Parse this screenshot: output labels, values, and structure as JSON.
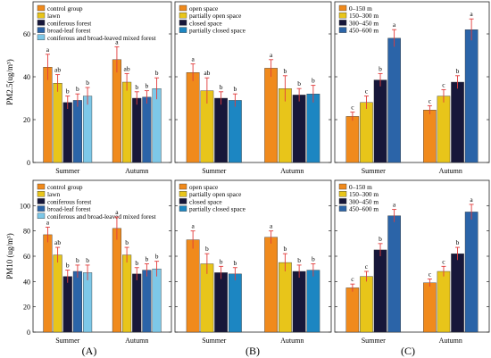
{
  "colors": {
    "group1": [
      "#f08a1c",
      "#e8c51a",
      "#17173a",
      "#2b64a8",
      "#7dc8e8"
    ],
    "group2": [
      "#f08a1c",
      "#e8c51a",
      "#17173a",
      "#1c86c2"
    ],
    "group3": [
      "#f08a1c",
      "#e8c51a",
      "#17173a",
      "#2b64a8"
    ],
    "error": "#e23b3b"
  },
  "panel_labels": [
    "(A)",
    "(B)",
    "(C)"
  ],
  "chart_data": [
    {
      "type": "bar",
      "row": "pm25",
      "col": "A",
      "ylabel": "PM2.5(ug/m³)",
      "ylim": [
        0,
        75
      ],
      "yticks": [
        0,
        20,
        40,
        60
      ],
      "categories": [
        "Summer",
        "Autumn"
      ],
      "legend": [
        "control group",
        "lawn",
        "coniferous forest",
        "broad-leaf forest",
        "coniferous and broad-leaved mixed forest"
      ],
      "series": [
        {
          "name": "control group",
          "values": [
            44.5,
            48
          ],
          "errors": [
            6,
            6
          ],
          "letters": [
            "a",
            "a"
          ]
        },
        {
          "name": "lawn",
          "values": [
            37,
            37.5
          ],
          "errors": [
            4,
            4
          ],
          "letters": [
            "ab",
            "ab"
          ]
        },
        {
          "name": "coniferous forest",
          "values": [
            28,
            30
          ],
          "errors": [
            3,
            3
          ],
          "letters": [
            "b",
            "b"
          ]
        },
        {
          "name": "broad-leaf forest",
          "values": [
            29,
            30.5
          ],
          "errors": [
            3,
            3
          ],
          "letters": [
            "b",
            "b"
          ]
        },
        {
          "name": "coniferous and broad-leaved mixed forest",
          "values": [
            31,
            34.5
          ],
          "errors": [
            4,
            5
          ],
          "letters": [
            "b",
            "b"
          ]
        }
      ]
    },
    {
      "type": "bar",
      "row": "pm25",
      "col": "B",
      "ylim": [
        0,
        75
      ],
      "yticks": [
        0,
        20,
        40,
        60
      ],
      "categories": [
        "Summer",
        "Autumn"
      ],
      "legend": [
        "open space",
        "partially open space",
        "closed space",
        "partially closed space"
      ],
      "series": [
        {
          "name": "open space",
          "values": [
            42,
            44
          ],
          "errors": [
            4,
            4
          ],
          "letters": [
            "a",
            "a"
          ]
        },
        {
          "name": "partially open space",
          "values": [
            33.5,
            34.5
          ],
          "errors": [
            6,
            6
          ],
          "letters": [
            "ab",
            "b"
          ]
        },
        {
          "name": "closed space",
          "values": [
            30,
            31.5
          ],
          "errors": [
            3,
            3
          ],
          "letters": [
            "b",
            "b"
          ]
        },
        {
          "name": "partially closed space",
          "values": [
            29,
            32
          ],
          "errors": [
            3,
            4
          ],
          "letters": [
            "b",
            "b"
          ]
        }
      ]
    },
    {
      "type": "bar",
      "row": "pm25",
      "col": "C",
      "ylim": [
        0,
        75
      ],
      "yticks": [
        0,
        20,
        40,
        60
      ],
      "categories": [
        "Summer",
        "Autumn"
      ],
      "legend": [
        "0–150 m",
        "150–300 m",
        "300–450 m",
        "450–600 m"
      ],
      "series": [
        {
          "name": "0–150 m",
          "values": [
            21.5,
            24.5
          ],
          "errors": [
            2,
            2
          ],
          "letters": [
            "c",
            "c"
          ]
        },
        {
          "name": "150–300 m",
          "values": [
            28,
            31
          ],
          "errors": [
            3,
            3
          ],
          "letters": [
            "c",
            "c"
          ]
        },
        {
          "name": "300–450 m",
          "values": [
            38.5,
            37.5
          ],
          "errors": [
            3,
            3
          ],
          "letters": [
            "b",
            "b"
          ]
        },
        {
          "name": "450–600 m",
          "values": [
            58,
            62
          ],
          "errors": [
            4,
            5
          ],
          "letters": [
            "a",
            "a"
          ]
        }
      ]
    },
    {
      "type": "bar",
      "row": "pm10",
      "col": "A",
      "ylabel": "PM10 (ug/m³)",
      "ylim": [
        0,
        120
      ],
      "yticks": [
        0,
        20,
        40,
        60,
        80,
        100
      ],
      "categories": [
        "Summer",
        "Autumn"
      ],
      "legend": [
        "control group",
        "lawn",
        "coniferous forest",
        "broad-leaf forest",
        "coniferous and broad-leaved mixed forest"
      ],
      "series": [
        {
          "name": "control group",
          "values": [
            77,
            82
          ],
          "errors": [
            6,
            9
          ],
          "letters": [
            "a",
            "a"
          ]
        },
        {
          "name": "lawn",
          "values": [
            61,
            61
          ],
          "errors": [
            6,
            6
          ],
          "letters": [
            "ab",
            "b"
          ]
        },
        {
          "name": "coniferous forest",
          "values": [
            44,
            46
          ],
          "errors": [
            5,
            5
          ],
          "letters": [
            "b",
            "b"
          ]
        },
        {
          "name": "broad-leaf forest",
          "values": [
            48,
            49
          ],
          "errors": [
            5,
            5
          ],
          "letters": [
            "b",
            "b"
          ]
        },
        {
          "name": "coniferous and broad-leaved mixed forest",
          "values": [
            47,
            50
          ],
          "errors": [
            6,
            6
          ],
          "letters": [
            "b",
            "b"
          ]
        }
      ]
    },
    {
      "type": "bar",
      "row": "pm10",
      "col": "B",
      "ylim": [
        0,
        120
      ],
      "yticks": [
        0,
        20,
        40,
        60,
        80,
        100
      ],
      "categories": [
        "Summer",
        "Autumn"
      ],
      "legend": [
        "open space",
        "partially open space",
        "closed space",
        "partially closed space"
      ],
      "series": [
        {
          "name": "open space",
          "values": [
            73,
            75
          ],
          "errors": [
            7,
            5
          ],
          "letters": [
            "a",
            "a"
          ]
        },
        {
          "name": "partially open space",
          "values": [
            54,
            55
          ],
          "errors": [
            8,
            7
          ],
          "letters": [
            "b",
            "b"
          ]
        },
        {
          "name": "closed space",
          "values": [
            47,
            48
          ],
          "errors": [
            5,
            5
          ],
          "letters": [
            "b",
            "b"
          ]
        },
        {
          "name": "partially closed space",
          "values": [
            46,
            49
          ],
          "errors": [
            5,
            5
          ],
          "letters": [
            "b",
            "b"
          ]
        }
      ]
    },
    {
      "type": "bar",
      "row": "pm10",
      "col": "C",
      "ylim": [
        0,
        120
      ],
      "yticks": [
        0,
        20,
        40,
        60,
        80,
        100
      ],
      "categories": [
        "Summer",
        "Autumn"
      ],
      "legend": [
        "0–150 m",
        "150–300 m",
        "300–450 m",
        "450–600 m"
      ],
      "series": [
        {
          "name": "0–150 m",
          "values": [
            35,
            39
          ],
          "errors": [
            3,
            3
          ],
          "letters": [
            "c",
            "c"
          ]
        },
        {
          "name": "150–300 m",
          "values": [
            44,
            48
          ],
          "errors": [
            4,
            4
          ],
          "letters": [
            "c",
            "c"
          ]
        },
        {
          "name": "300–450 m",
          "values": [
            65,
            62
          ],
          "errors": [
            5,
            5
          ],
          "letters": [
            "b",
            "b"
          ]
        },
        {
          "name": "450–600 m",
          "values": [
            92,
            95
          ],
          "errors": [
            5,
            6
          ],
          "letters": [
            "a",
            "a"
          ]
        }
      ]
    }
  ]
}
